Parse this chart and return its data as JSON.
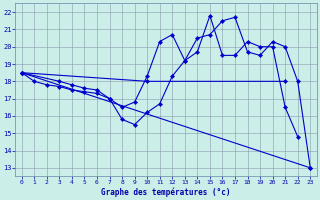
{
  "xlabel": "Graphe des températures (°c)",
  "bg_color": "#cceee8",
  "line_color": "#0000cc",
  "xlim": [
    -0.5,
    23.5
  ],
  "ylim": [
    12.5,
    22.5
  ],
  "xticks": [
    0,
    1,
    2,
    3,
    4,
    5,
    6,
    7,
    8,
    9,
    10,
    11,
    12,
    13,
    14,
    15,
    16,
    17,
    18,
    19,
    20,
    21,
    22,
    23
  ],
  "yticks": [
    13,
    14,
    15,
    16,
    17,
    18,
    19,
    20,
    21,
    22
  ],
  "series": {
    "line_zigzag": {
      "x": [
        0,
        1,
        2,
        3,
        4,
        5,
        6,
        7,
        8,
        9,
        10,
        11,
        12,
        13,
        14,
        15,
        16,
        17,
        18,
        19,
        20,
        21,
        22,
        23
      ],
      "y": [
        18.5,
        18.0,
        17.8,
        17.7,
        17.5,
        17.4,
        17.3,
        17.0,
        15.8,
        15.5,
        16.2,
        16.7,
        18.3,
        19.2,
        20.5,
        20.7,
        21.5,
        21.7,
        19.7,
        19.5,
        20.3,
        20.0,
        18.0,
        13.0
      ]
    },
    "line_curve": {
      "x": [
        0,
        3,
        4,
        5,
        6,
        7,
        8,
        9,
        10,
        11,
        12,
        13,
        14,
        15,
        16,
        17,
        18,
        19,
        20,
        21,
        22
      ],
      "y": [
        18.5,
        18.0,
        17.8,
        17.6,
        17.5,
        17.0,
        16.5,
        16.8,
        18.3,
        20.3,
        20.7,
        19.2,
        19.7,
        21.8,
        19.5,
        19.5,
        20.3,
        20.0,
        20.0,
        16.5,
        14.8
      ]
    },
    "line_flat": {
      "x": [
        0,
        10,
        21
      ],
      "y": [
        18.5,
        18.0,
        18.0
      ]
    },
    "line_diag": {
      "x": [
        0,
        23
      ],
      "y": [
        18.5,
        13.0
      ]
    }
  }
}
